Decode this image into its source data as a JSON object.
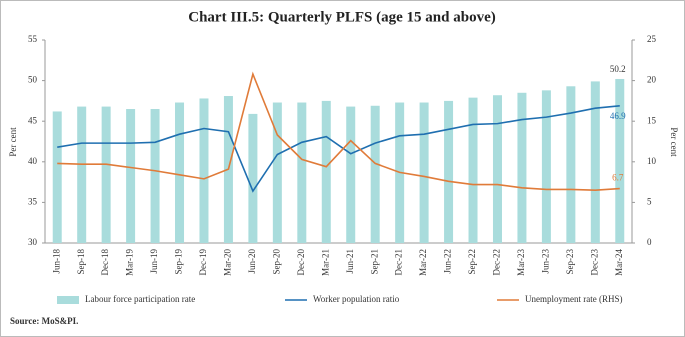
{
  "chart_data": {
    "type": "combo",
    "title": "Chart III.5: Quarterly PLFS (age 15 and above)",
    "y_label": "Per cent",
    "y2_label": "Per cent",
    "source": "Source: MoS&PI.",
    "categories": [
      "Jun-18",
      "Sep-18",
      "Dec-18",
      "Mar-19",
      "Jun-19",
      "Sep-19",
      "Dec-19",
      "Mar-20",
      "Jun-20",
      "Sep-20",
      "Dec-20",
      "Mar-21",
      "Jun-21",
      "Sep-21",
      "Dec-21",
      "Mar-22",
      "Jun-22",
      "Sep-22",
      "Dec-22",
      "Mar-23",
      "Jun-23",
      "Sep-23",
      "Dec-23",
      "Mar-24"
    ],
    "ylim": [
      30,
      55
    ],
    "yticks": [
      30,
      35,
      40,
      45,
      50,
      55
    ],
    "y2lim": [
      0,
      25
    ],
    "y2ticks": [
      0,
      5,
      10,
      15,
      20,
      25
    ],
    "series": [
      {
        "name": "Labour force participation rate",
        "type": "bar",
        "color": "#a9dcdc",
        "values": [
          46.2,
          46.8,
          46.8,
          46.5,
          46.5,
          47.3,
          47.8,
          48.1,
          45.9,
          47.3,
          47.3,
          47.5,
          46.8,
          46.9,
          47.3,
          47.3,
          47.5,
          47.9,
          48.2,
          48.5,
          48.8,
          49.3,
          49.9,
          50.2
        ]
      },
      {
        "name": "Worker population ratio",
        "type": "line",
        "color": "#1f6fb0",
        "values": [
          41.8,
          42.3,
          42.3,
          42.3,
          42.4,
          43.4,
          44.1,
          43.7,
          36.4,
          40.9,
          42.4,
          43.1,
          41.0,
          42.3,
          43.2,
          43.4,
          44.0,
          44.6,
          44.7,
          45.2,
          45.5,
          46.0,
          46.6,
          46.9
        ]
      },
      {
        "name": "Unemployment rate (RHS)",
        "type": "line",
        "axis": "y2",
        "color": "#e07b39",
        "values": [
          9.8,
          9.7,
          9.7,
          9.3,
          8.9,
          8.4,
          7.9,
          9.1,
          20.8,
          13.3,
          10.3,
          9.4,
          12.6,
          9.8,
          8.7,
          8.2,
          7.6,
          7.2,
          7.2,
          6.8,
          6.6,
          6.6,
          6.5,
          6.7
        ]
      }
    ]
  }
}
